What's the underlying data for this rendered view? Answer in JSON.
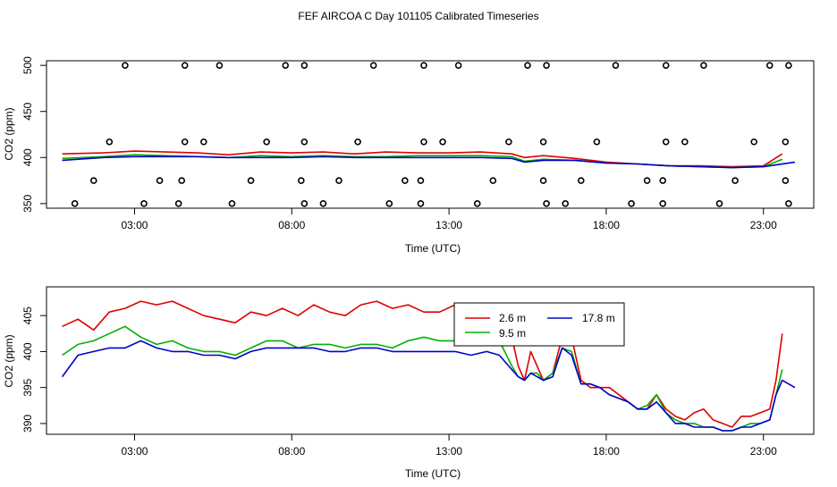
{
  "title": "FEF AIRCOA C  Day 101105  Calibrated Timeseries",
  "colors": {
    "s26": "#e00000",
    "s95": "#00b000",
    "s178": "#0000cc",
    "axis": "#000000"
  },
  "chart_data": [
    {
      "type": "scatter+line",
      "name": "top-panel",
      "xlabel": "Time (UTC)",
      "ylabel": "CO2 (ppm)",
      "xlim": [
        0.2,
        24.6
      ],
      "ylim": [
        345,
        505
      ],
      "x_ticks": [
        3,
        8,
        13,
        18,
        23
      ],
      "x_tick_labels": [
        "03:00",
        "08:00",
        "13:00",
        "18:00",
        "23:00"
      ],
      "y_ticks": [
        350,
        400,
        450,
        500
      ],
      "y_tick_labels": [
        "350",
        "400",
        "450",
        "500"
      ],
      "calibration_points": [
        {
          "x": 1.1,
          "y": 350
        },
        {
          "x": 1.7,
          "y": 375
        },
        {
          "x": 2.2,
          "y": 417
        },
        {
          "x": 2.7,
          "y": 500
        },
        {
          "x": 3.3,
          "y": 350
        },
        {
          "x": 3.8,
          "y": 375
        },
        {
          "x": 4.4,
          "y": 350
        },
        {
          "x": 4.5,
          "y": 375
        },
        {
          "x": 4.6,
          "y": 417
        },
        {
          "x": 4.6,
          "y": 500
        },
        {
          "x": 5.2,
          "y": 417
        },
        {
          "x": 5.7,
          "y": 500
        },
        {
          "x": 6.1,
          "y": 350
        },
        {
          "x": 6.7,
          "y": 375
        },
        {
          "x": 7.2,
          "y": 417
        },
        {
          "x": 7.8,
          "y": 500
        },
        {
          "x": 8.3,
          "y": 375
        },
        {
          "x": 8.4,
          "y": 350
        },
        {
          "x": 8.4,
          "y": 417
        },
        {
          "x": 8.4,
          "y": 500
        },
        {
          "x": 9.0,
          "y": 350
        },
        {
          "x": 9.5,
          "y": 375
        },
        {
          "x": 10.1,
          "y": 417
        },
        {
          "x": 10.6,
          "y": 500
        },
        {
          "x": 11.1,
          "y": 350
        },
        {
          "x": 11.6,
          "y": 375
        },
        {
          "x": 12.1,
          "y": 350
        },
        {
          "x": 12.1,
          "y": 375
        },
        {
          "x": 12.2,
          "y": 417
        },
        {
          "x": 12.2,
          "y": 500
        },
        {
          "x": 12.8,
          "y": 417
        },
        {
          "x": 13.3,
          "y": 500
        },
        {
          "x": 13.9,
          "y": 350
        },
        {
          "x": 14.4,
          "y": 375
        },
        {
          "x": 14.9,
          "y": 417
        },
        {
          "x": 15.5,
          "y": 500
        },
        {
          "x": 16.0,
          "y": 375
        },
        {
          "x": 16.0,
          "y": 417
        },
        {
          "x": 16.1,
          "y": 350
        },
        {
          "x": 16.1,
          "y": 500
        },
        {
          "x": 16.7,
          "y": 350
        },
        {
          "x": 17.2,
          "y": 375
        },
        {
          "x": 17.7,
          "y": 417
        },
        {
          "x": 18.3,
          "y": 500
        },
        {
          "x": 18.8,
          "y": 350
        },
        {
          "x": 19.3,
          "y": 375
        },
        {
          "x": 19.8,
          "y": 350
        },
        {
          "x": 19.8,
          "y": 375
        },
        {
          "x": 19.9,
          "y": 417
        },
        {
          "x": 19.9,
          "y": 500
        },
        {
          "x": 20.5,
          "y": 417
        },
        {
          "x": 21.1,
          "y": 500
        },
        {
          "x": 21.6,
          "y": 350
        },
        {
          "x": 22.1,
          "y": 375
        },
        {
          "x": 22.7,
          "y": 417
        },
        {
          "x": 23.2,
          "y": 500
        },
        {
          "x": 23.7,
          "y": 375
        },
        {
          "x": 23.7,
          "y": 417
        },
        {
          "x": 23.8,
          "y": 350
        },
        {
          "x": 23.8,
          "y": 500
        }
      ],
      "series": [
        {
          "name": "2.6 m",
          "color": "#e00000",
          "x": [
            0.7,
            2,
            3,
            4,
            5,
            6,
            7,
            8,
            9,
            10,
            11,
            12,
            13,
            14,
            15,
            15.4,
            16,
            17,
            18,
            19,
            20,
            21,
            22,
            23,
            23.6
          ],
          "y": [
            404,
            405,
            407,
            406,
            405,
            403,
            406,
            405,
            406,
            404,
            406,
            405,
            405,
            406,
            404,
            400,
            402,
            399,
            395,
            393,
            391,
            391,
            390,
            391,
            404
          ]
        },
        {
          "name": "9.5 m",
          "color": "#00b000",
          "x": [
            0.7,
            2,
            3,
            4,
            5,
            6,
            7,
            8,
            9,
            10,
            11,
            12,
            13,
            14,
            15,
            15.4,
            16,
            17,
            18,
            19,
            20,
            21,
            22,
            23,
            23.6
          ],
          "y": [
            399,
            401,
            403,
            402,
            401,
            400,
            402,
            401,
            402,
            401,
            401,
            402,
            402,
            402,
            401,
            396,
            398,
            397,
            394,
            393,
            391,
            390,
            389,
            390,
            398
          ]
        },
        {
          "name": "17.8 m",
          "color": "#0000cc",
          "x": [
            0.7,
            2,
            3,
            4,
            5,
            6,
            7,
            8,
            9,
            10,
            11,
            12,
            13,
            14,
            15,
            15.4,
            16,
            17,
            18,
            19,
            20,
            21,
            22,
            23,
            24
          ],
          "y": [
            397,
            400,
            401,
            401,
            401,
            400,
            400,
            400,
            401,
            400,
            400,
            400,
            400,
            400,
            399,
            395,
            397,
            397,
            394,
            393,
            391,
            390,
            389,
            390,
            395
          ]
        }
      ]
    },
    {
      "type": "line",
      "name": "bottom-panel",
      "xlabel": "Time (UTC)",
      "ylabel": "CO2 (ppm)",
      "xlim": [
        0.2,
        24.6
      ],
      "ylim": [
        388.5,
        409
      ],
      "x_ticks": [
        3,
        8,
        13,
        18,
        23
      ],
      "x_tick_labels": [
        "03:00",
        "08:00",
        "13:00",
        "18:00",
        "23:00"
      ],
      "y_ticks": [
        390,
        395,
        400,
        405
      ],
      "y_tick_labels": [
        "390",
        "395",
        "400",
        "405"
      ],
      "legend": {
        "position": "top-right-inside",
        "entries": [
          "2.6 m",
          "17.8 m",
          "9.5 m"
        ]
      },
      "series": [
        {
          "name": "2.6 m",
          "color": "#e00000",
          "x": [
            0.7,
            1.2,
            1.7,
            2.2,
            2.7,
            3.2,
            3.7,
            4.2,
            4.7,
            5.2,
            5.7,
            6.2,
            6.7,
            7.2,
            7.7,
            8.2,
            8.7,
            9.2,
            9.7,
            10.2,
            10.7,
            11.2,
            11.7,
            12.2,
            12.7,
            13.2,
            13.7,
            14.2,
            14.6,
            15.0,
            15.2,
            15.4,
            15.6,
            15.8,
            16.0,
            16.3,
            16.6,
            16.9,
            17.2,
            17.5,
            17.8,
            18.1,
            18.4,
            18.7,
            19.0,
            19.3,
            19.6,
            19.9,
            20.2,
            20.5,
            20.8,
            21.1,
            21.4,
            21.7,
            22.0,
            22.3,
            22.6,
            22.9,
            23.2,
            23.4,
            23.6
          ],
          "y": [
            403.5,
            404.5,
            403,
            405.5,
            406,
            407,
            406.5,
            407,
            406,
            405,
            404.5,
            404,
            405.5,
            405,
            406,
            405,
            406.5,
            405.5,
            405,
            406.5,
            407,
            406,
            406.5,
            405.5,
            405.5,
            406.5,
            406,
            405,
            404,
            402,
            398,
            396,
            400,
            398,
            396,
            397,
            402,
            402,
            396,
            395,
            395,
            395,
            394,
            393,
            392,
            392,
            394,
            392,
            391,
            390.5,
            391.5,
            392,
            390.5,
            390,
            389.5,
            391,
            391,
            391.5,
            392,
            396,
            402.5
          ]
        },
        {
          "name": "9.5 m",
          "color": "#00b000",
          "x": [
            0.7,
            1.2,
            1.7,
            2.2,
            2.7,
            3.2,
            3.7,
            4.2,
            4.7,
            5.2,
            5.7,
            6.2,
            6.7,
            7.2,
            7.7,
            8.2,
            8.7,
            9.2,
            9.7,
            10.2,
            10.7,
            11.2,
            11.7,
            12.2,
            12.7,
            13.2,
            13.7,
            14.2,
            14.6,
            15.0,
            15.2,
            15.4,
            15.6,
            15.8,
            16.0,
            16.3,
            16.6,
            16.9,
            17.2,
            17.5,
            17.8,
            18.1,
            18.4,
            18.7,
            19.0,
            19.3,
            19.6,
            19.9,
            20.2,
            20.5,
            20.8,
            21.1,
            21.4,
            21.7,
            22.0,
            22.3,
            22.6,
            22.9,
            23.2,
            23.4,
            23.6
          ],
          "y": [
            399.5,
            401,
            401.5,
            402.5,
            403.5,
            402,
            401,
            401.5,
            400.5,
            400,
            400,
            399.5,
            400.5,
            401.5,
            401.5,
            400.5,
            401,
            401,
            400.5,
            401,
            401,
            400.5,
            401.5,
            402,
            401.5,
            401.5,
            402,
            402,
            401.5,
            398,
            396.5,
            396,
            397,
            397,
            396,
            397,
            400.5,
            400,
            395.5,
            395.5,
            395,
            394,
            393.5,
            393,
            392,
            392.5,
            394,
            391.5,
            390.5,
            390,
            390,
            389.5,
            389.5,
            389,
            389,
            389.5,
            390,
            390,
            390.5,
            394,
            397.5
          ]
        },
        {
          "name": "17.8 m",
          "color": "#0000cc",
          "x": [
            0.7,
            1.2,
            1.7,
            2.2,
            2.7,
            3.2,
            3.7,
            4.2,
            4.7,
            5.2,
            5.7,
            6.2,
            6.7,
            7.2,
            7.7,
            8.2,
            8.7,
            9.2,
            9.7,
            10.2,
            10.7,
            11.2,
            11.7,
            12.2,
            12.7,
            13.2,
            13.7,
            14.2,
            14.6,
            15.0,
            15.2,
            15.4,
            15.6,
            15.8,
            16.0,
            16.3,
            16.6,
            16.9,
            17.2,
            17.5,
            17.8,
            18.1,
            18.4,
            18.7,
            19.0,
            19.3,
            19.6,
            19.9,
            20.2,
            20.5,
            20.8,
            21.1,
            21.4,
            21.7,
            22.0,
            22.3,
            22.6,
            22.9,
            23.2,
            23.4,
            23.6,
            24.0
          ],
          "y": [
            396.5,
            399.5,
            400,
            400.5,
            400.5,
            401.5,
            400.5,
            400,
            400,
            399.5,
            399.5,
            399,
            400,
            400.5,
            400.5,
            400.5,
            400.5,
            400,
            400,
            400.5,
            400.5,
            400,
            400,
            400,
            400,
            400,
            399.5,
            400,
            399.5,
            397.5,
            396.5,
            396,
            397,
            396.5,
            396,
            396.5,
            400.5,
            399.5,
            395.5,
            395.5,
            395,
            394,
            393.5,
            393,
            392,
            392,
            393,
            391.5,
            390,
            390,
            389.5,
            389.5,
            389.5,
            389,
            389,
            389.5,
            389.5,
            390,
            390.5,
            394,
            396,
            395
          ]
        }
      ]
    }
  ]
}
